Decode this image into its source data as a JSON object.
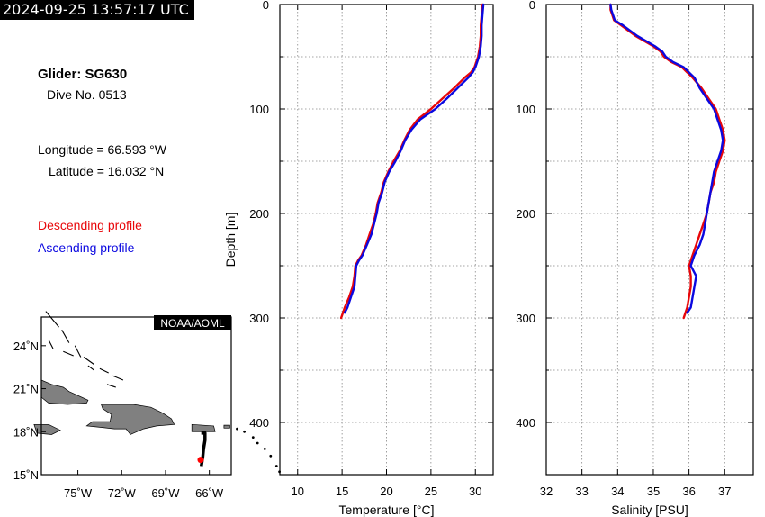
{
  "timestamp": "2024-09-25 13:57:17 UTC",
  "info": {
    "glider": "Glider: SG630",
    "dive": "Dive No. 0513",
    "longitude": "Longitude = 66.593 °W",
    "latitude": "Latitude = 16.032 °N"
  },
  "legend": {
    "descending": "Descending profile",
    "ascending": "Ascending profile",
    "descending_color": "#e8070a",
    "ascending_color": "#0b08e0"
  },
  "map": {
    "credit": "NOAA/AOML",
    "lat_ticks": [
      24,
      21,
      18,
      15
    ],
    "lat_labels": [
      "24˚N",
      "21˚N",
      "18˚N",
      "15˚N"
    ],
    "lon_ticks": [
      -75,
      -72,
      -69,
      -66
    ],
    "lon_labels": [
      "75˚W",
      "72˚W",
      "69˚W",
      "66˚W"
    ],
    "lat_range": [
      15,
      26
    ],
    "lon_range": [
      -77.5,
      -64.5
    ],
    "glider_track": [
      [
        -66.55,
        17.9
      ],
      [
        -66.3,
        17.9
      ],
      [
        -66.3,
        17.4
      ],
      [
        -66.4,
        16.8
      ],
      [
        -66.45,
        16.2
      ],
      [
        -66.55,
        15.6
      ]
    ],
    "glider_position": [
      -66.593,
      16.032
    ],
    "land_color": "#808080",
    "track_color": "#000000",
    "position_color": "#ff0000"
  },
  "chart_data": [
    {
      "type": "line",
      "xlabel": "Temperature [°C]",
      "ylabel": "Depth [m]",
      "xlim": [
        8,
        32
      ],
      "ylim": [
        450,
        0
      ],
      "xticks": [
        10,
        15,
        20,
        25,
        30
      ],
      "yticks": [
        0,
        100,
        200,
        300,
        400
      ],
      "grid": true,
      "series": [
        {
          "name": "Descending profile",
          "color": "#e8070a",
          "depth": [
            0,
            10,
            20,
            30,
            40,
            50,
            60,
            65,
            70,
            80,
            90,
            100,
            110,
            120,
            130,
            140,
            150,
            160,
            170,
            180,
            190,
            200,
            210,
            220,
            230,
            240,
            245,
            250,
            260,
            270,
            280,
            290,
            300
          ],
          "values": [
            30.8,
            30.7,
            30.6,
            30.6,
            30.5,
            30.3,
            29.9,
            29.5,
            28.8,
            27.6,
            26.3,
            25.0,
            23.5,
            22.6,
            22.0,
            21.5,
            20.8,
            20.2,
            19.7,
            19.4,
            19.0,
            18.8,
            18.5,
            18.1,
            17.7,
            17.2,
            16.8,
            16.5,
            16.4,
            16.2,
            15.8,
            15.3,
            14.9
          ]
        },
        {
          "name": "Ascending profile",
          "color": "#0b08e0",
          "depth": [
            0,
            10,
            20,
            30,
            40,
            50,
            60,
            65,
            70,
            80,
            90,
            100,
            110,
            120,
            130,
            140,
            150,
            160,
            170,
            180,
            190,
            200,
            210,
            220,
            230,
            240,
            245,
            250,
            260,
            270,
            280,
            290,
            295
          ],
          "values": [
            30.9,
            30.8,
            30.7,
            30.7,
            30.6,
            30.4,
            30.0,
            29.7,
            29.2,
            28.0,
            26.8,
            25.5,
            23.8,
            22.8,
            22.1,
            21.6,
            21.0,
            20.3,
            19.8,
            19.5,
            19.1,
            18.9,
            18.6,
            18.3,
            17.8,
            17.3,
            16.9,
            16.6,
            16.5,
            16.4,
            16.0,
            15.6,
            15.3
          ]
        }
      ]
    },
    {
      "type": "line",
      "xlabel": "Salinity [PSU]",
      "ylabel": "",
      "xlim": [
        32,
        37.8
      ],
      "ylim": [
        450,
        0
      ],
      "xticks": [
        32,
        33,
        34,
        35,
        36,
        37
      ],
      "yticks": [
        0,
        100,
        200,
        300,
        400
      ],
      "grid": true,
      "series": [
        {
          "name": "Descending profile",
          "color": "#e8070a",
          "depth": [
            0,
            5,
            10,
            15,
            20,
            30,
            40,
            45,
            50,
            55,
            60,
            70,
            80,
            90,
            100,
            110,
            120,
            130,
            140,
            150,
            160,
            170,
            180,
            190,
            200,
            210,
            220,
            230,
            240,
            250,
            260,
            270,
            280,
            290,
            300
          ],
          "values": [
            33.8,
            33.8,
            33.85,
            33.9,
            34.1,
            34.5,
            35.0,
            35.2,
            35.3,
            35.5,
            35.8,
            36.1,
            36.35,
            36.55,
            36.75,
            36.85,
            36.95,
            37.0,
            36.95,
            36.85,
            36.75,
            36.7,
            36.6,
            36.55,
            36.5,
            36.4,
            36.3,
            36.2,
            36.1,
            36.0,
            36.05,
            36.05,
            36.0,
            35.95,
            35.85
          ]
        },
        {
          "name": "Ascending profile",
          "color": "#0b08e0",
          "depth": [
            0,
            5,
            10,
            15,
            20,
            30,
            40,
            45,
            50,
            55,
            60,
            70,
            80,
            90,
            100,
            110,
            120,
            130,
            140,
            150,
            160,
            170,
            180,
            190,
            200,
            210,
            220,
            230,
            240,
            250,
            260,
            270,
            280,
            290,
            295
          ],
          "values": [
            33.8,
            33.82,
            33.87,
            33.92,
            34.15,
            34.55,
            35.05,
            35.25,
            35.35,
            35.55,
            35.85,
            36.15,
            36.3,
            36.5,
            36.7,
            36.8,
            36.9,
            36.95,
            36.9,
            36.8,
            36.7,
            36.65,
            36.6,
            36.55,
            36.5,
            36.45,
            36.4,
            36.3,
            36.15,
            36.05,
            36.2,
            36.15,
            36.1,
            36.05,
            35.95
          ]
        }
      ]
    }
  ]
}
